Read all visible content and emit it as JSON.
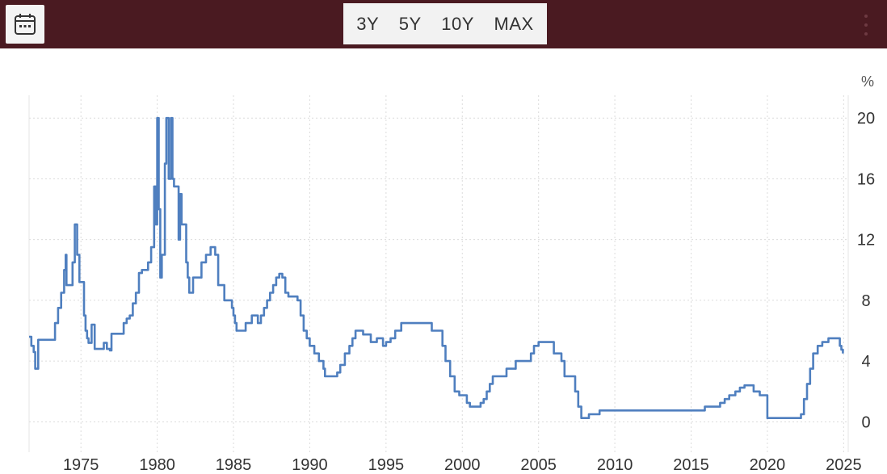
{
  "toolbar": {
    "calendar_icon": "calendar-icon",
    "ranges": [
      "3Y",
      "5Y",
      "10Y",
      "MAX"
    ],
    "menu_icon": "more-vertical-icon",
    "background_color": "#4a1a21"
  },
  "chart_data": {
    "type": "line",
    "unit_label": "%",
    "xlim": [
      1971.6,
      2025.3
    ],
    "ylim": [
      -2,
      21.5
    ],
    "x_ticks": [
      "1975",
      "1980",
      "1985",
      "1990",
      "1995",
      "2000",
      "2005",
      "2010",
      "2015",
      "2020",
      "2025"
    ],
    "y_ticks": [
      "0",
      "4",
      "8",
      "12",
      "16",
      "20"
    ],
    "grid": true,
    "line_color": "#4f7fbf",
    "series": [
      {
        "x": [
          1971.6,
          1971.75,
          1971.9,
          1972.0,
          1972.1,
          1972.2,
          1972.4,
          1972.6,
          1973.0,
          1973.3,
          1973.5,
          1973.7,
          1973.9,
          1974.0,
          1974.05,
          1974.15,
          1974.3,
          1974.45,
          1974.6,
          1974.75,
          1974.9,
          1975.0,
          1975.1,
          1975.2,
          1975.3,
          1975.4,
          1975.5,
          1975.7,
          1975.9,
          1976.3,
          1976.5,
          1976.7,
          1976.9,
          1977.0,
          1977.2,
          1977.5,
          1977.8,
          1978.0,
          1978.2,
          1978.4,
          1978.6,
          1978.8,
          1979.0,
          1979.2,
          1979.4,
          1979.6,
          1979.8,
          1979.9,
          1980.0,
          1980.1,
          1980.2,
          1980.3,
          1980.5,
          1980.6,
          1980.75,
          1980.9,
          1981.0,
          1981.1,
          1981.25,
          1981.4,
          1981.5,
          1981.6,
          1981.75,
          1981.9,
          1982.0,
          1982.1,
          1982.2,
          1982.35,
          1982.5,
          1982.7,
          1982.9,
          1983.0,
          1983.2,
          1983.5,
          1983.8,
          1984.0,
          1984.2,
          1984.4,
          1984.6,
          1984.75,
          1984.9,
          1985.0,
          1985.1,
          1985.2,
          1985.4,
          1985.6,
          1985.8,
          1986.0,
          1986.2,
          1986.4,
          1986.6,
          1986.8,
          1987.0,
          1987.2,
          1987.4,
          1987.6,
          1987.8,
          1988.0,
          1988.2,
          1988.4,
          1988.6,
          1988.8,
          1989.0,
          1989.2,
          1989.4,
          1989.6,
          1989.8,
          1990.0,
          1990.3,
          1990.6,
          1990.9,
          1991.0,
          1991.2,
          1991.4,
          1991.6,
          1991.8,
          1992.0,
          1992.3,
          1992.6,
          1992.8,
          1993.0,
          1993.5,
          1994.0,
          1994.2,
          1994.4,
          1994.6,
          1994.8,
          1995.0,
          1995.3,
          1995.6,
          1996.0,
          1997.0,
          1998.0,
          1998.7,
          1998.9,
          1999.2,
          1999.5,
          1999.8,
          2000.0,
          2000.3,
          2000.5,
          2001.0,
          2001.2,
          2001.4,
          2001.6,
          2001.8,
          2002.0,
          2002.9,
          2003.5,
          2004.5,
          2004.7,
          2005.0,
          2005.5,
          2006.0,
          2006.5,
          2006.7,
          2007.4,
          2007.6,
          2007.8,
          2008.0,
          2008.3,
          2008.8,
          2009.0,
          2015.9,
          2016.9,
          2017.2,
          2017.5,
          2017.9,
          2018.2,
          2018.5,
          2018.8,
          2019.1,
          2019.5,
          2019.8,
          2020.0,
          2020.2,
          2022.2,
          2022.4,
          2022.6,
          2022.8,
          2023.0,
          2023.3,
          2023.6,
          2024.0,
          2024.6,
          2024.75,
          2024.85,
          2024.95
        ],
        "y": [
          5.6,
          5.0,
          4.6,
          3.5,
          3.5,
          5.4,
          5.4,
          5.4,
          5.4,
          6.5,
          7.5,
          8.5,
          10.0,
          11.0,
          9.0,
          9.0,
          9.0,
          10.5,
          13.0,
          11.0,
          9.2,
          9.2,
          9.2,
          7.0,
          6.0,
          5.5,
          5.2,
          6.4,
          4.8,
          4.8,
          5.2,
          4.8,
          4.7,
          5.8,
          5.8,
          5.8,
          6.5,
          6.8,
          7.0,
          7.8,
          8.5,
          9.8,
          10.0,
          10.0,
          10.5,
          11.5,
          15.5,
          13.0,
          20.0,
          14.0,
          9.5,
          11.0,
          17.0,
          20.0,
          16.0,
          20.0,
          16.0,
          15.5,
          15.5,
          12.0,
          15.0,
          13.0,
          13.0,
          10.5,
          9.5,
          8.5,
          8.5,
          9.5,
          9.5,
          9.5,
          10.5,
          10.5,
          11.0,
          11.5,
          11.0,
          9.0,
          9.0,
          8.0,
          8.0,
          8.0,
          7.5,
          7.0,
          6.5,
          6.0,
          6.0,
          6.0,
          6.5,
          6.5,
          7.0,
          7.0,
          6.5,
          7.0,
          7.5,
          8.0,
          8.5,
          9.0,
          9.5,
          9.75,
          9.5,
          8.5,
          8.25,
          8.25,
          8.25,
          8.0,
          7.0,
          6.0,
          5.5,
          5.0,
          4.5,
          4.0,
          3.5,
          3.0,
          3.0,
          3.0,
          3.0,
          3.25,
          3.75,
          4.5,
          5.0,
          5.5,
          6.0,
          5.75,
          5.25,
          5.25,
          5.5,
          5.5,
          5.0,
          5.25,
          5.5,
          6.0,
          6.5,
          6.5,
          6.0,
          5.0,
          4.0,
          3.0,
          2.0,
          1.75,
          1.75,
          1.25,
          1.0,
          1.0,
          1.25,
          1.5,
          2.0,
          2.5,
          3.0,
          3.5,
          4.0,
          4.5,
          5.0,
          5.25,
          5.25,
          4.5,
          4.0,
          3.0,
          2.0,
          1.0,
          0.25,
          0.25,
          0.5,
          0.5,
          0.75,
          1.0,
          1.25,
          1.5,
          1.75,
          2.0,
          2.25,
          2.4,
          2.4,
          2.0,
          1.75,
          1.75,
          0.25,
          0.25,
          0.5,
          1.5,
          2.5,
          3.5,
          4.5,
          5.0,
          5.25,
          5.5,
          5.5,
          5.0,
          4.75,
          4.5
        ]
      }
    ]
  }
}
